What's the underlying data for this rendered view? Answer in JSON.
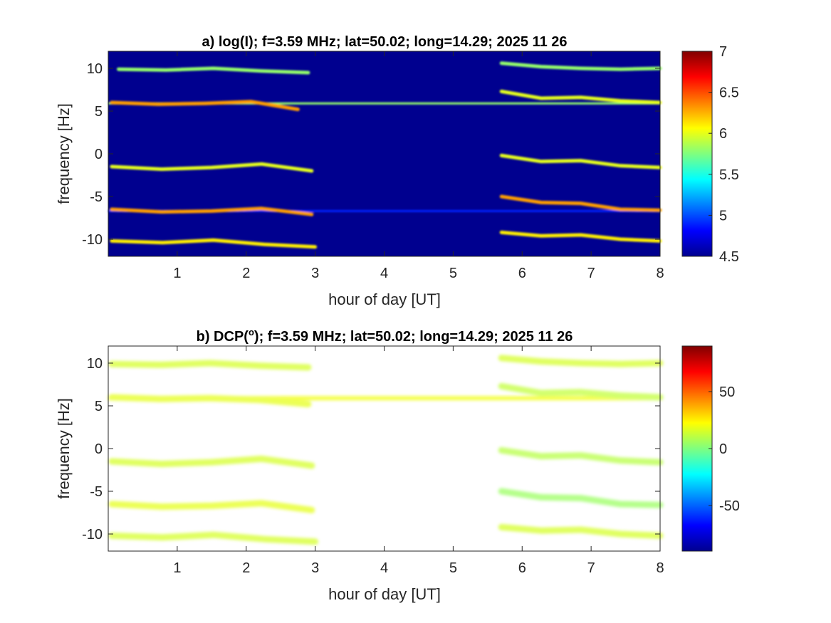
{
  "chart_data": [
    {
      "type": "heatmap",
      "title": "a) log(I); f=3.59 MHz;  lat=50.02; long=14.29; 2025 11 26",
      "xlabel": "hour of day [UT]",
      "ylabel": "frequency [Hz]",
      "xlim": [
        0,
        8
      ],
      "ylim": [
        -12,
        12
      ],
      "xticks": [
        "1",
        "2",
        "3",
        "4",
        "5",
        "6",
        "7",
        "8"
      ],
      "yticks": [
        "10",
        "5",
        "0",
        "-5",
        "-10"
      ],
      "colorbar": {
        "range": [
          4.5,
          7
        ],
        "ticks": [
          "7",
          "6.5",
          "6",
          "5.5",
          "5",
          "4.5"
        ],
        "colormap": "jet"
      },
      "background_value": 4.5,
      "features": [
        {
          "type": "line",
          "y": 5.9,
          "x0": 0,
          "x1": 8,
          "value": 5.8
        },
        {
          "type": "line",
          "y": -6.7,
          "x0": 0,
          "x1": 8,
          "value": 4.9
        },
        {
          "type": "trace",
          "x0": 0.15,
          "x1": 2.9,
          "y": [
            9.9,
            9.8,
            10.0,
            9.7,
            9.5
          ],
          "value": 5.8
        },
        {
          "type": "trace",
          "x0": 0.05,
          "x1": 2.75,
          "y": [
            6.0,
            5.8,
            5.9,
            6.1,
            5.2
          ],
          "value": 6.3
        },
        {
          "type": "trace",
          "x0": 0.05,
          "x1": 2.95,
          "y": [
            -1.5,
            -1.8,
            -1.6,
            -1.2,
            -2.0
          ],
          "value": 6.0
        },
        {
          "type": "trace",
          "x0": 0.05,
          "x1": 2.95,
          "y": [
            -6.5,
            -6.8,
            -6.7,
            -6.4,
            -7.1
          ],
          "value": 6.3
        },
        {
          "type": "trace",
          "x0": 0.05,
          "x1": 3.0,
          "y": [
            -10.2,
            -10.4,
            -10.1,
            -10.6,
            -10.9
          ],
          "value": 6.1
        },
        {
          "type": "trace",
          "x0": 5.7,
          "x1": 8.0,
          "y": [
            10.6,
            10.2,
            10.0,
            9.9,
            10.0
          ],
          "value": 5.8
        },
        {
          "type": "trace",
          "x0": 5.7,
          "x1": 8.0,
          "y": [
            7.3,
            6.5,
            6.6,
            6.2,
            6.0
          ],
          "value": 6.0
        },
        {
          "type": "trace",
          "x0": 5.7,
          "x1": 8.0,
          "y": [
            -0.2,
            -0.9,
            -0.8,
            -1.4,
            -1.6
          ],
          "value": 6.0
        },
        {
          "type": "trace",
          "x0": 5.7,
          "x1": 8.0,
          "y": [
            -5.0,
            -5.7,
            -5.8,
            -6.5,
            -6.6
          ],
          "value": 6.3
        },
        {
          "type": "trace",
          "x0": 5.7,
          "x1": 8.0,
          "y": [
            -9.2,
            -9.6,
            -9.5,
            -10.0,
            -10.2
          ],
          "value": 6.1
        }
      ]
    },
    {
      "type": "heatmap",
      "title": "b) DCP(",
      "title_superscript": "o",
      "title_suffix": "); f=3.59 MHz;  lat=50.02; long=14.29; 2025 11 26",
      "xlabel": "hour of day [UT]",
      "ylabel": "frequency [Hz]",
      "xlim": [
        0,
        8
      ],
      "ylim": [
        -12,
        12
      ],
      "xticks": [
        "1",
        "2",
        "3",
        "4",
        "5",
        "6",
        "7",
        "8"
      ],
      "yticks": [
        "10",
        "5",
        "0",
        "-5",
        "-10"
      ],
      "colorbar": {
        "range": [
          -90,
          90
        ],
        "ticks": [
          "50",
          "0",
          "-50"
        ],
        "colormap": "jet"
      },
      "background_value": null,
      "features": [
        {
          "type": "line",
          "y": 5.9,
          "x0": 0,
          "x1": 8,
          "value": 20
        },
        {
          "type": "trace",
          "x0": 0.05,
          "x1": 2.9,
          "y": [
            9.9,
            9.8,
            10.0,
            9.7,
            9.5
          ],
          "value": 15
        },
        {
          "type": "trace",
          "x0": 0.05,
          "x1": 2.9,
          "y": [
            6.0,
            5.8,
            5.9,
            5.7,
            5.2
          ],
          "value": 18
        },
        {
          "type": "trace",
          "x0": 0.05,
          "x1": 2.95,
          "y": [
            -1.5,
            -1.8,
            -1.6,
            -1.2,
            -2.0
          ],
          "value": 15
        },
        {
          "type": "trace",
          "x0": 0.05,
          "x1": 2.95,
          "y": [
            -6.5,
            -6.8,
            -6.7,
            -6.4,
            -7.2
          ],
          "value": 18
        },
        {
          "type": "trace",
          "x0": 0.05,
          "x1": 3.0,
          "y": [
            -10.2,
            -10.4,
            -10.1,
            -10.6,
            -10.9
          ],
          "value": 15
        },
        {
          "type": "trace",
          "x0": 5.7,
          "x1": 8.0,
          "y": [
            10.6,
            10.2,
            10.0,
            9.9,
            10.0
          ],
          "value": 15
        },
        {
          "type": "trace",
          "x0": 5.7,
          "x1": 8.0,
          "y": [
            7.3,
            6.5,
            6.6,
            6.2,
            6.0
          ],
          "value": 12
        },
        {
          "type": "trace",
          "x0": 5.7,
          "x1": 8.0,
          "y": [
            -0.2,
            -0.9,
            -0.8,
            -1.4,
            -1.6
          ],
          "value": 10
        },
        {
          "type": "trace",
          "x0": 5.7,
          "x1": 8.0,
          "y": [
            -5.0,
            -5.7,
            -5.8,
            -6.5,
            -6.6
          ],
          "value": 5
        },
        {
          "type": "trace",
          "x0": 5.7,
          "x1": 8.0,
          "y": [
            -9.2,
            -9.6,
            -9.5,
            -10.0,
            -10.2
          ],
          "value": 15
        }
      ]
    }
  ]
}
